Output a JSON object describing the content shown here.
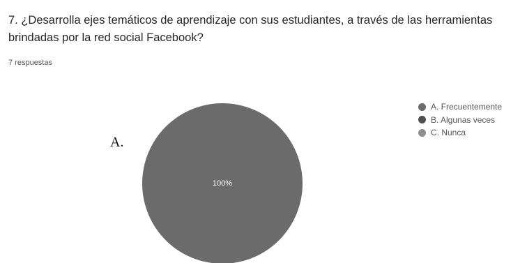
{
  "question": {
    "title": "7. ¿Desarrolla ejes temáticos de aprendizaje con sus estudiantes, a través de las herramientas brindadas por la red social Facebook?",
    "responses": "7 respuestas"
  },
  "annotation": "A.",
  "chart_data": {
    "type": "pie",
    "categories": [
      "A. Frecuentemente",
      "B. Algunas veces",
      "C. Nunca"
    ],
    "values": [
      100,
      0,
      0
    ],
    "data_labels": [
      "100%",
      "",
      ""
    ],
    "colors": [
      "#6b6b6b",
      "#4f4f4f",
      "#8e8e8e"
    ],
    "legend_position": "right"
  }
}
